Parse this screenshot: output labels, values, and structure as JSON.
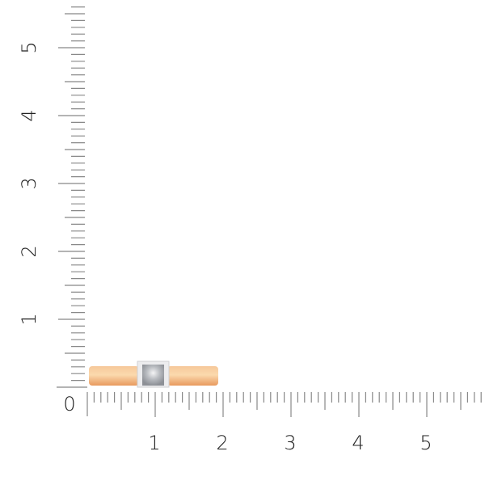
{
  "scale": {
    "x_labels": [
      "0",
      "1",
      "2",
      "3",
      "4",
      "5"
    ],
    "y_labels": [
      "1",
      "2",
      "3",
      "4",
      "5"
    ],
    "minor_divisions_per_unit": 10
  },
  "product": {
    "type": "ring",
    "band_color": "#f3b37a",
    "stone_color": "#cfd3d8",
    "setting_color": "#e8e8ea"
  },
  "colors": {
    "tick": "#888888",
    "label": "#222222"
  }
}
